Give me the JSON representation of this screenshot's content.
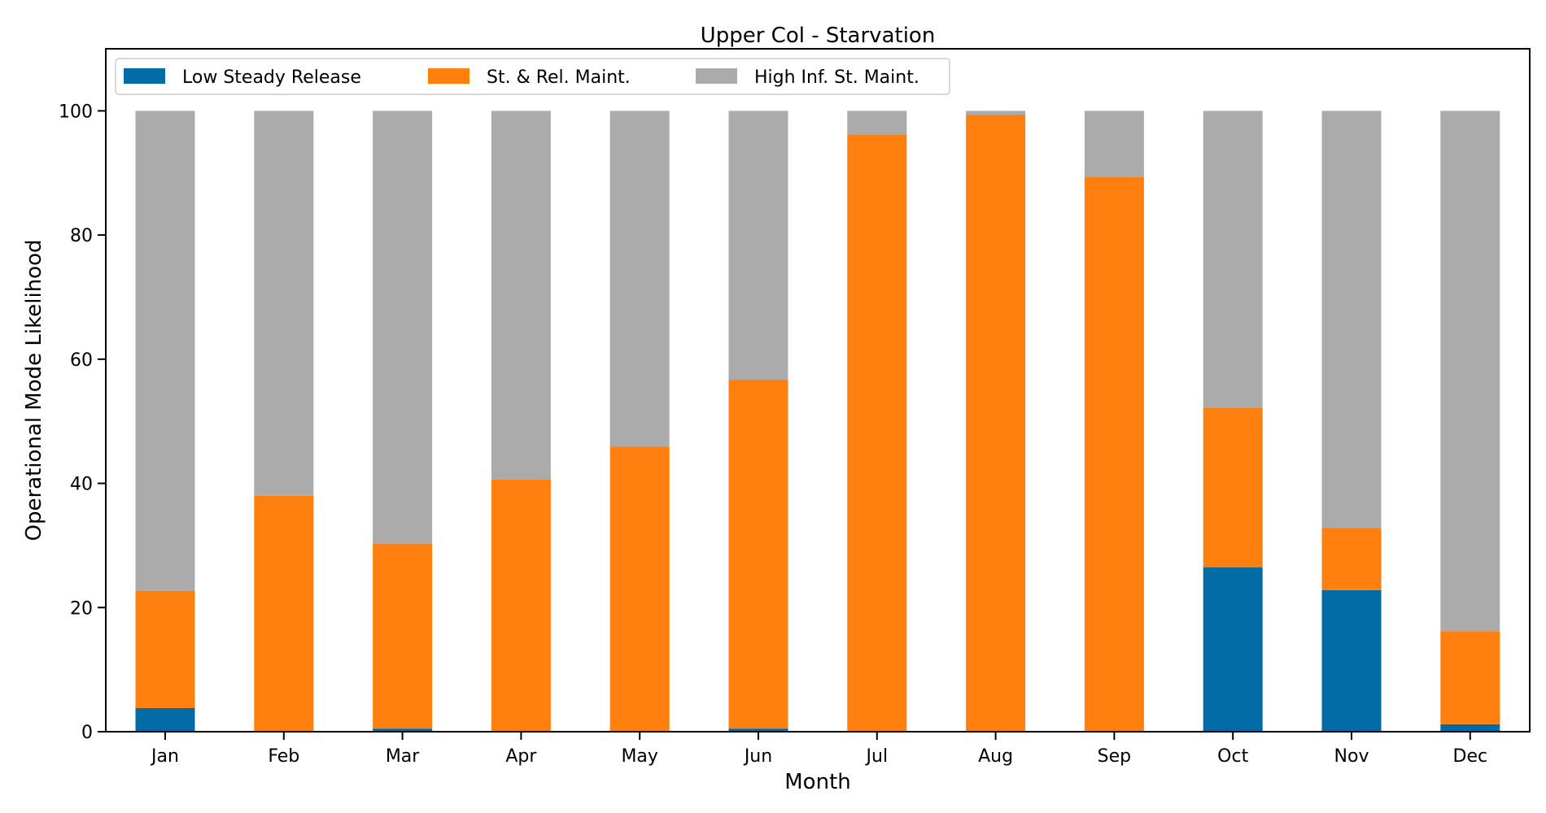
{
  "chart_data": {
    "type": "bar",
    "stacked": true,
    "title": "Upper Col - Starvation",
    "xlabel": "Month",
    "ylabel": "Operational Mode Likelihood",
    "ylim": [
      0,
      110
    ],
    "yticks": [
      0,
      20,
      40,
      60,
      80,
      100
    ],
    "grid": false,
    "legend_position": "top-left",
    "categories": [
      "Jan",
      "Feb",
      "Mar",
      "Apr",
      "May",
      "Jun",
      "Jul",
      "Aug",
      "Sep",
      "Oct",
      "Nov",
      "Dec"
    ],
    "series": [
      {
        "name": "Low Steady Release",
        "color": "#006ba4",
        "values": [
          3.8,
          0.0,
          0.5,
          0.0,
          0.0,
          0.5,
          0.0,
          0.0,
          0.0,
          26.5,
          22.8,
          1.2
        ]
      },
      {
        "name": "St. & Rel. Maint.",
        "color": "#ff800e",
        "values": [
          18.9,
          38.0,
          29.8,
          40.6,
          45.9,
          56.2,
          96.2,
          99.4,
          89.4,
          25.7,
          10.0,
          15.0
        ]
      },
      {
        "name": "High Inf. St. Maint.",
        "color": "#ababab",
        "values": [
          77.3,
          62.0,
          69.7,
          59.4,
          54.1,
          43.3,
          3.8,
          0.6,
          10.6,
          47.8,
          67.2,
          83.8
        ]
      }
    ]
  }
}
